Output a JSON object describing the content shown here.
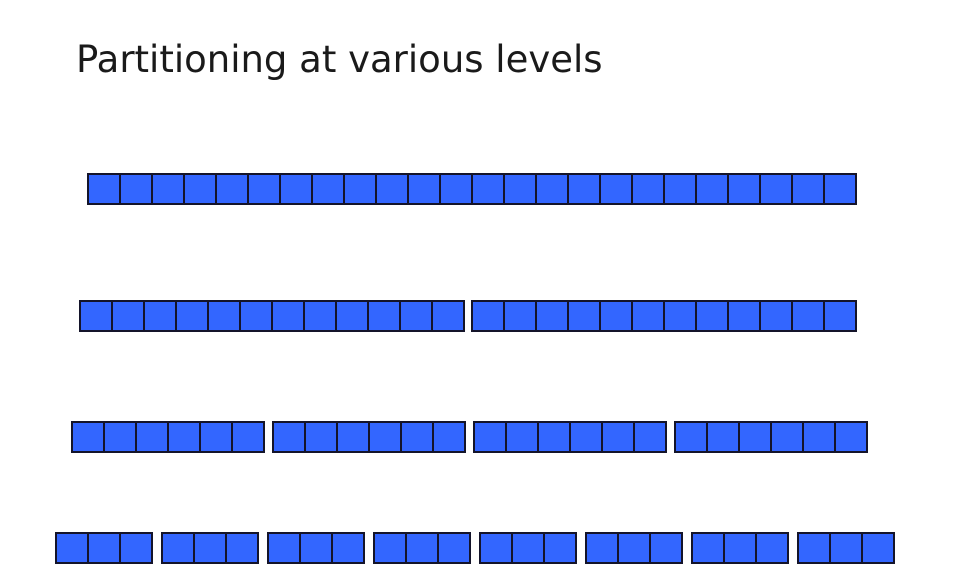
{
  "slide": {
    "title": "Partitioning at various levels"
  },
  "diagram": {
    "fill_color": "#3366ff",
    "border_color": "#14142a",
    "levels": [
      {
        "groups": 1,
        "cells_per_group": 24
      },
      {
        "groups": 2,
        "cells_per_group": 12
      },
      {
        "groups": 4,
        "cells_per_group": 6
      },
      {
        "groups": 8,
        "cells_per_group": 3
      }
    ]
  }
}
